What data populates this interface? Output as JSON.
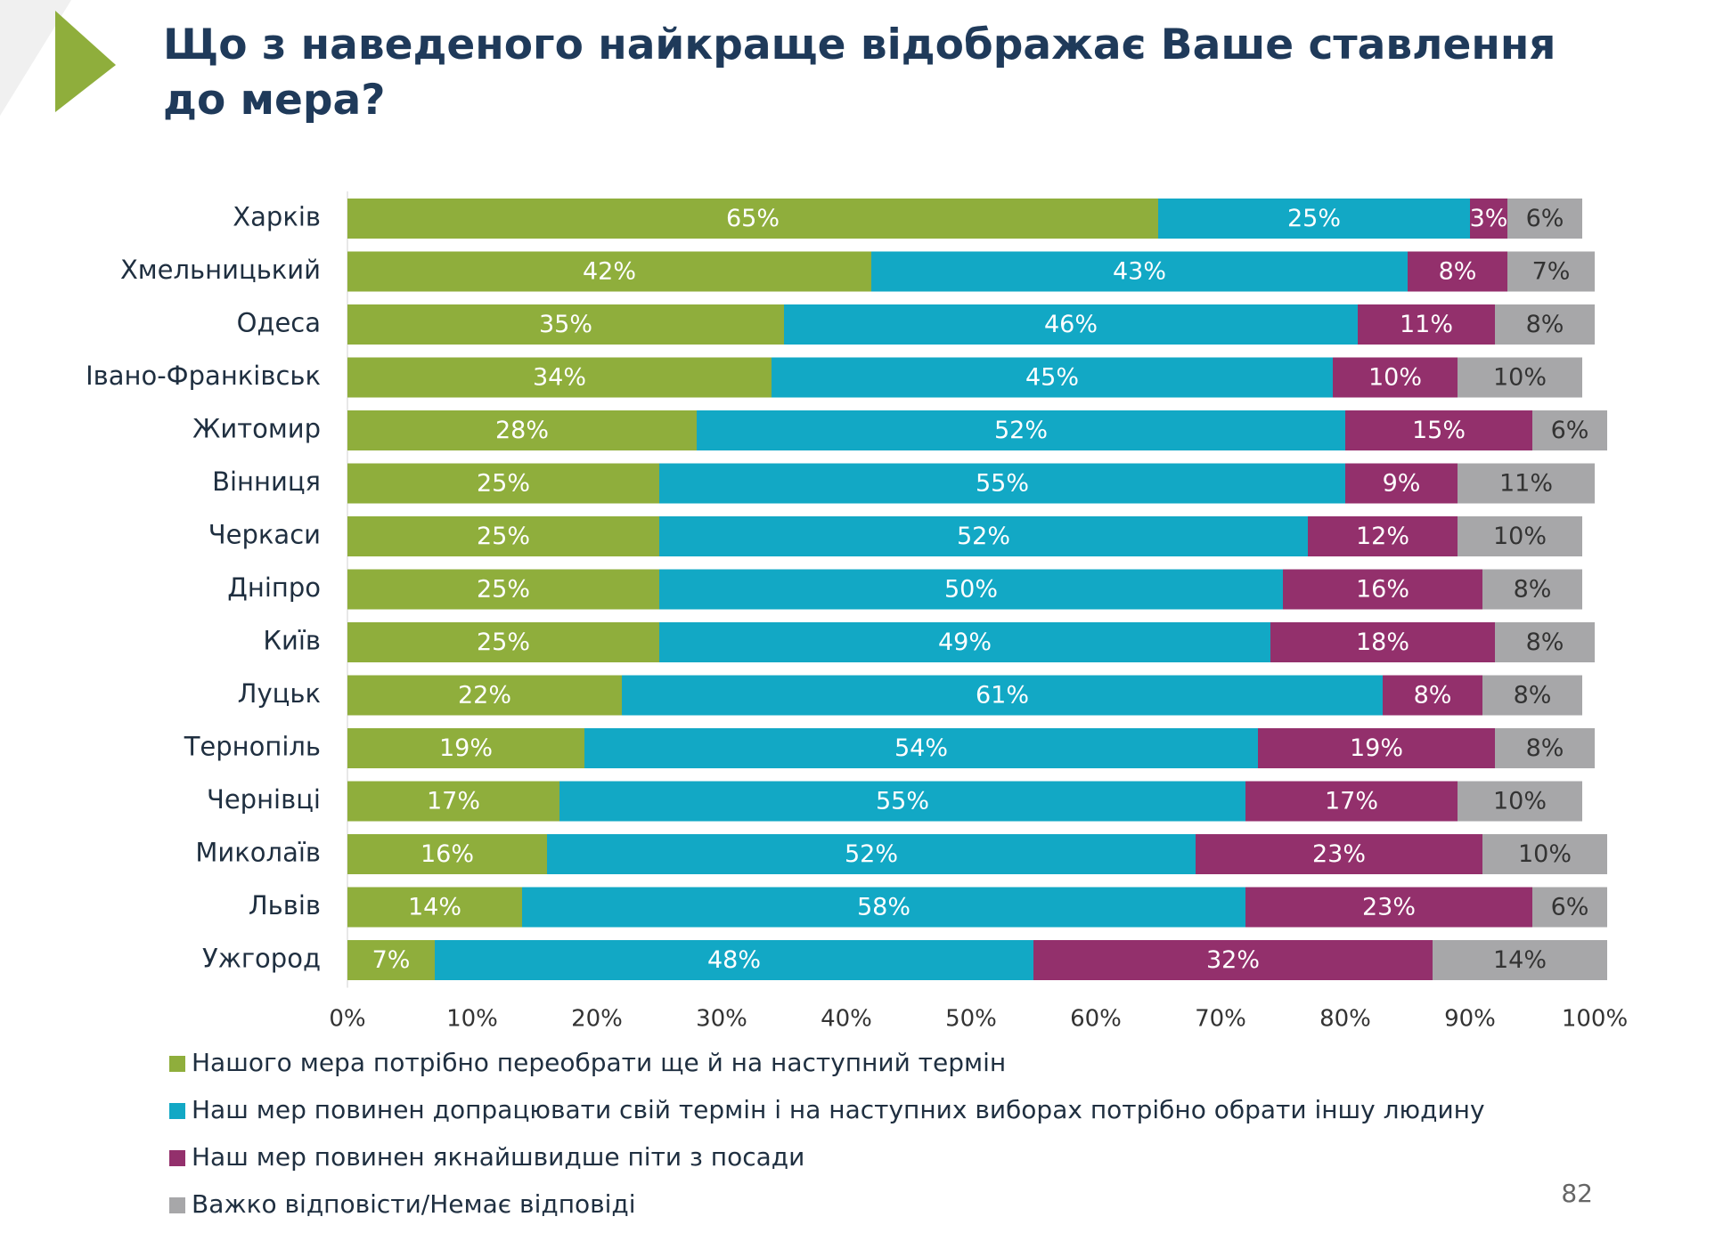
{
  "chart_data": {
    "type": "stacked_barh",
    "title": "Що з наведеного найкраще відображає Ваше ставлення до мера?",
    "categories": [
      "Харків",
      "Хмельницький",
      "Одеса",
      "Івано-Франківськ",
      "Житомир",
      "Вінниця",
      "Черкаси",
      "Дніпро",
      "Київ",
      "Луцьк",
      "Тернопіль",
      "Чернівці",
      "Миколаїв",
      "Львів",
      "Ужгород"
    ],
    "series": [
      {
        "name": "Нашого мера потрібно переобрати ще й на наступний термін",
        "color": "#8fae3c",
        "values": [
          65,
          42,
          35,
          34,
          28,
          25,
          25,
          25,
          25,
          22,
          19,
          17,
          16,
          14,
          7
        ],
        "value_labels": [
          "65%",
          "42%",
          "35%",
          "34%",
          "28%",
          "25%",
          "25%",
          "25%",
          "25%",
          "22%",
          "19%",
          "17%",
          "16%",
          "14%",
          "7%"
        ]
      },
      {
        "name": "Наш мер повинен допрацювати свій термін і на наступних виборах потрібно обрати іншу людину",
        "color": "#12a8c5",
        "values": [
          25,
          43,
          46,
          45,
          52,
          55,
          52,
          50,
          49,
          61,
          54,
          55,
          52,
          58,
          48
        ],
        "value_labels": [
          "25%",
          "43%",
          "46%",
          "45%",
          "52%",
          "55%",
          "52%",
          "50%",
          "49%",
          "61%",
          "54%",
          "55%",
          "52%",
          "58%",
          "48%"
        ]
      },
      {
        "name": "Наш мер повинен якнайшвидше піти з посади",
        "color": "#93306c",
        "values": [
          3,
          8,
          11,
          10,
          15,
          9,
          12,
          16,
          18,
          8,
          19,
          17,
          23,
          23,
          32
        ],
        "value_labels": [
          "3%",
          "8%",
          "11%",
          "10%",
          "15%",
          "9%",
          "12%",
          "16%",
          "18%",
          "8%",
          "19%",
          "17%",
          "23%",
          "23%",
          "32%"
        ]
      },
      {
        "name": "Важко відповісти/Немає відповіді",
        "color": "#a7a7a9",
        "values": [
          6,
          7,
          8,
          10,
          6,
          11,
          10,
          8,
          8,
          8,
          8,
          10,
          10,
          6,
          14
        ],
        "value_labels": [
          "6%",
          "7%",
          "8%",
          "10%",
          "6%",
          "11%",
          "10%",
          "8%",
          "8%",
          "8%",
          "8%",
          "10%",
          "10%",
          "6%",
          "14%"
        ]
      }
    ],
    "xlim": [
      0,
      100
    ],
    "xticks": [
      {
        "value": 0,
        "label": "0%"
      },
      {
        "value": 10,
        "label": "10%"
      },
      {
        "value": 20,
        "label": "20%"
      },
      {
        "value": 30,
        "label": "30%"
      },
      {
        "value": 40,
        "label": "40%"
      },
      {
        "value": 50,
        "label": "50%"
      },
      {
        "value": 60,
        "label": "60%"
      },
      {
        "value": 70,
        "label": "70%"
      },
      {
        "value": 80,
        "label": "80%"
      },
      {
        "value": 90,
        "label": "90%"
      },
      {
        "value": 100,
        "label": "100%"
      }
    ],
    "legend": "bottom"
  },
  "page_number": "82"
}
